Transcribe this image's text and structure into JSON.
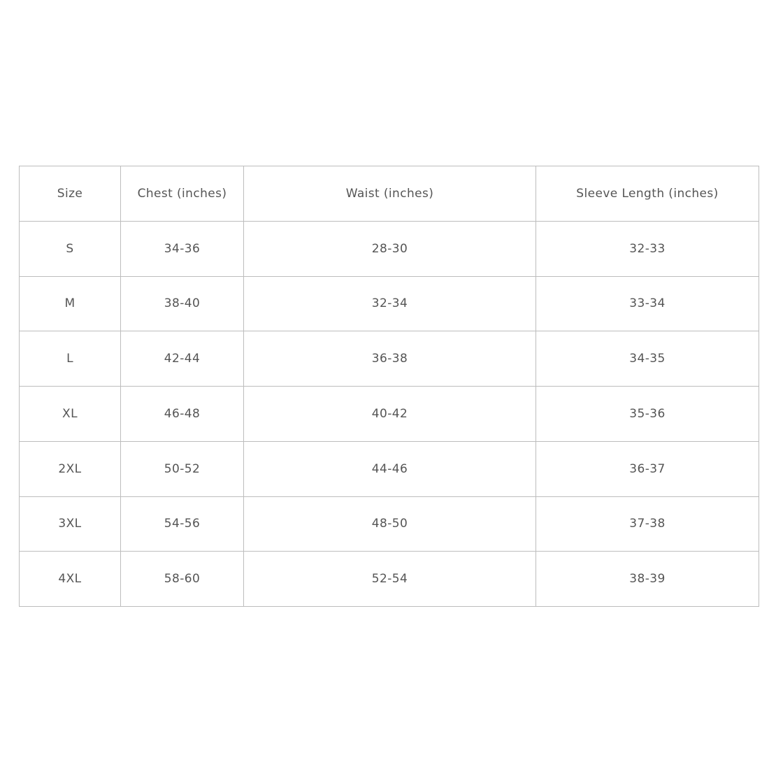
{
  "table": {
    "header": [
      "Size",
      "Chest (inches)",
      "Waist (inches)",
      "Sleeve Length (inches)"
    ],
    "rows": [
      [
        "S",
        "34-36",
        "28-30",
        "32-33"
      ],
      [
        "M",
        "38-40",
        "32-34",
        "33-34"
      ],
      [
        "L",
        "42-44",
        "36-38",
        "34-35"
      ],
      [
        "XL",
        "46-48",
        "40-42",
        "35-36"
      ],
      [
        "2XL",
        "50-52",
        "44-46",
        "36-37"
      ],
      [
        "3XL",
        "54-56",
        "48-50",
        "37-38"
      ],
      [
        "4XL",
        "58-60",
        "52-54",
        "38-39"
      ]
    ]
  }
}
